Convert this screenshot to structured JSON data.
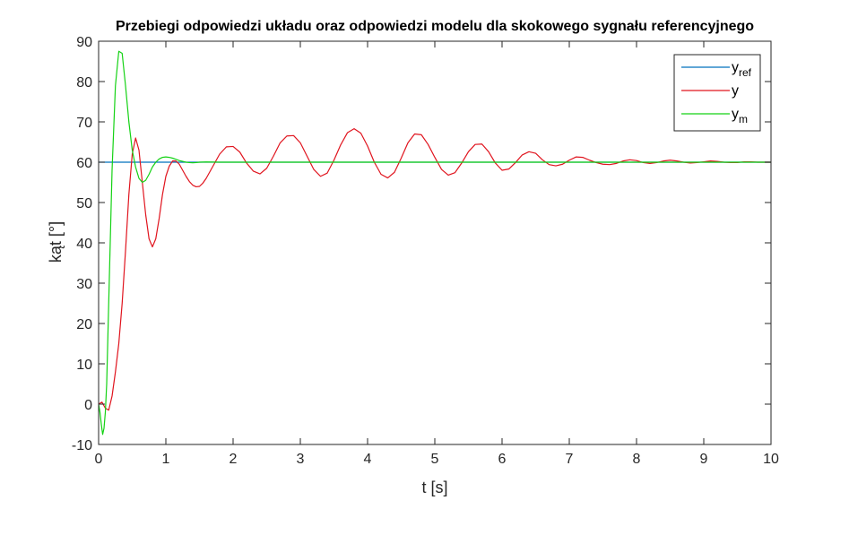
{
  "chart_data": {
    "type": "line",
    "title": "Przebiegi odpowiedzi układu oraz odpowiedzi modelu dla skokowego sygnału referencyjnego",
    "xlabel": "t [s]",
    "ylabel": "kąt [°]",
    "xlim": [
      0,
      10
    ],
    "ylim": [
      -10,
      90
    ],
    "xticks": [
      0,
      1,
      2,
      3,
      4,
      5,
      6,
      7,
      8,
      9,
      10
    ],
    "yticks": [
      -10,
      0,
      10,
      20,
      30,
      40,
      50,
      60,
      70,
      80,
      90
    ],
    "grid": false,
    "legend_position": "top-right",
    "series": [
      {
        "name": "y_ref",
        "legend_base": "y",
        "legend_sub": "ref",
        "color": "#0072BD",
        "x": [
          0,
          10
        ],
        "y": [
          60,
          60
        ]
      },
      {
        "name": "y",
        "legend_base": "y",
        "legend_sub": "",
        "color": "#E0141E",
        "x": [
          0,
          0.05,
          0.1,
          0.15,
          0.2,
          0.25,
          0.3,
          0.35,
          0.4,
          0.45,
          0.5,
          0.55,
          0.6,
          0.65,
          0.7,
          0.75,
          0.8,
          0.85,
          0.9,
          0.95,
          1.0,
          1.05,
          1.1,
          1.15,
          1.2,
          1.25,
          1.3,
          1.35,
          1.4,
          1.45,
          1.5,
          1.55,
          1.6,
          1.7,
          1.8,
          1.9,
          2.0,
          2.1,
          2.2,
          2.3,
          2.4,
          2.5,
          2.6,
          2.7,
          2.8,
          2.9,
          3.0,
          3.1,
          3.2,
          3.3,
          3.4,
          3.5,
          3.6,
          3.7,
          3.8,
          3.9,
          4.0,
          4.1,
          4.2,
          4.3,
          4.4,
          4.5,
          4.6,
          4.7,
          4.8,
          4.9,
          5.0,
          5.1,
          5.2,
          5.3,
          5.4,
          5.5,
          5.6,
          5.7,
          5.8,
          5.9,
          6.0,
          6.1,
          6.2,
          6.3,
          6.4,
          6.5,
          6.6,
          6.7,
          6.8,
          6.9,
          7.0,
          7.1,
          7.2,
          7.3,
          7.4,
          7.5,
          7.6,
          7.7,
          7.8,
          7.9,
          8.0,
          8.1,
          8.2,
          8.3,
          8.4,
          8.5,
          8.6,
          8.7,
          8.8,
          8.9,
          9.0,
          9.1,
          9.2,
          9.3,
          9.4,
          9.5,
          9.6,
          9.7,
          9.8,
          9.9,
          10.0
        ],
        "y": [
          0,
          0.5,
          -1,
          -1.5,
          2,
          8,
          15,
          25,
          38,
          52,
          62,
          66,
          63,
          55,
          47,
          41,
          39,
          41,
          46,
          52,
          56.5,
          59,
          60.3,
          60.3,
          59.5,
          58,
          56.5,
          55.2,
          54.3,
          53.9,
          54,
          54.8,
          56,
          59,
          62,
          63.8,
          63.9,
          62.5,
          59.8,
          57.8,
          57.1,
          58.5,
          61.5,
          64.8,
          66.5,
          66.6,
          64.8,
          61.5,
          58.2,
          56.5,
          57.3,
          60.5,
          64.3,
          67.3,
          68.3,
          67.2,
          64,
          60,
          57,
          56.1,
          57.5,
          61,
          64.8,
          67,
          66.8,
          64.4,
          61.2,
          58.2,
          56.8,
          57.4,
          59.8,
          62.6,
          64.4,
          64.5,
          62.6,
          59.8,
          58,
          58.3,
          59.9,
          61.8,
          62.6,
          62.2,
          60.6,
          59.4,
          59.1,
          59.5,
          60.5,
          61.3,
          61.2,
          60.5,
          59.9,
          59.5,
          59.4,
          59.7,
          60.3,
          60.6,
          60.4,
          59.9,
          59.7,
          59.9,
          60.3,
          60.5,
          60.3,
          60,
          59.8,
          59.9,
          60.1,
          60.3,
          60.2,
          60,
          59.9,
          59.9,
          60.1,
          60.1,
          60,
          60,
          60
        ]
      },
      {
        "name": "y_m",
        "legend_base": "y",
        "legend_sub": "m",
        "color": "#14D214",
        "x": [
          0,
          0.02,
          0.04,
          0.06,
          0.08,
          0.1,
          0.12,
          0.15,
          0.2,
          0.25,
          0.3,
          0.35,
          0.4,
          0.45,
          0.5,
          0.55,
          0.6,
          0.65,
          0.7,
          0.75,
          0.8,
          0.85,
          0.9,
          0.95,
          1.0,
          1.05,
          1.1,
          1.15,
          1.2,
          1.25,
          1.3,
          1.35,
          1.4,
          1.45,
          1.5,
          1.6,
          1.7,
          1.8,
          2.0,
          10.0
        ],
        "y": [
          0,
          -2,
          -5,
          -7.5,
          -6,
          -2,
          5,
          25,
          58,
          79,
          87.5,
          87,
          79,
          70,
          63,
          58.8,
          56,
          55,
          55.5,
          57,
          58.8,
          60,
          60.8,
          61.2,
          61.3,
          61.2,
          61,
          60.7,
          60.4,
          60.2,
          60,
          59.9,
          59.85,
          59.9,
          60,
          60.05,
          60.02,
          60,
          60,
          60
        ]
      }
    ]
  }
}
